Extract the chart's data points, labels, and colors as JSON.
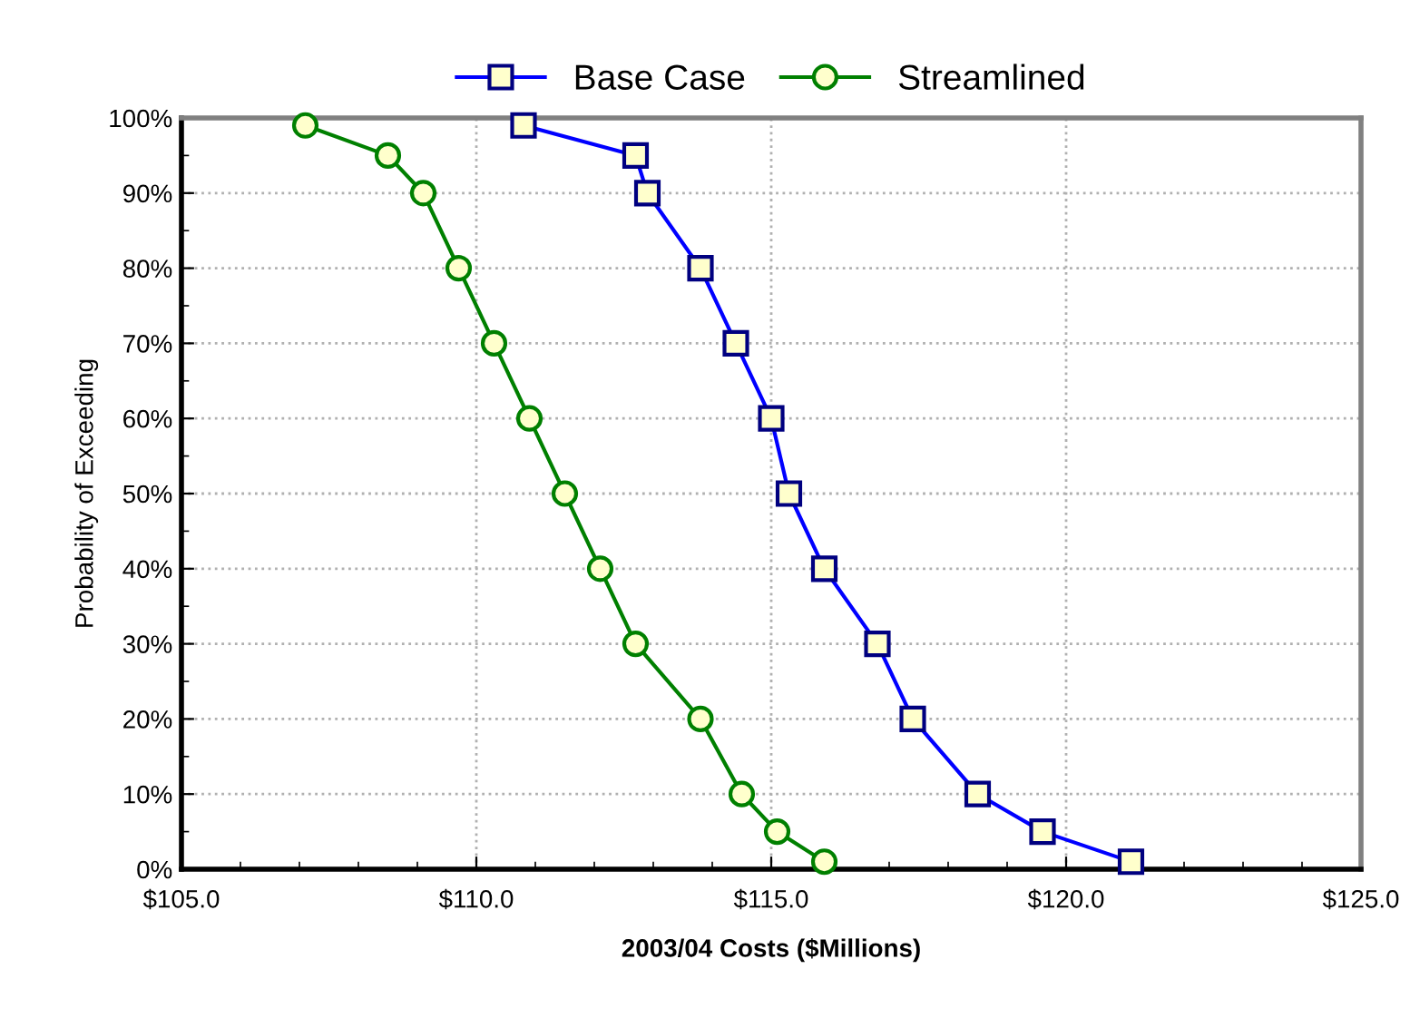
{
  "chart_data": {
    "type": "line",
    "xlabel": "2003/04 Costs ($Millions)",
    "ylabel": "Probability of Exceeding",
    "series": [
      {
        "name": "Base Case",
        "color": "#0000ff",
        "marker": "square",
        "x": [
          110.8,
          112.7,
          112.9,
          113.8,
          114.4,
          115.0,
          115.3,
          115.9,
          116.8,
          117.4,
          118.5,
          119.6,
          121.1
        ],
        "values": [
          99,
          95,
          90,
          80,
          70,
          60,
          50,
          40,
          30,
          20,
          10,
          5,
          1
        ]
      },
      {
        "name": "Streamlined",
        "color": "#008000",
        "marker": "circle",
        "x": [
          107.1,
          108.5,
          109.1,
          109.7,
          110.3,
          110.9,
          111.5,
          112.1,
          112.7,
          113.8,
          114.5,
          115.1,
          115.9
        ],
        "values": [
          99,
          95,
          90,
          80,
          70,
          60,
          50,
          40,
          30,
          20,
          10,
          5,
          1
        ]
      }
    ],
    "xlim": [
      105,
      125
    ],
    "xticks": [
      {
        "value": 105,
        "label": "$105.0"
      },
      {
        "value": 110,
        "label": "$110.0"
      },
      {
        "value": 115,
        "label": "$115.0"
      },
      {
        "value": 120,
        "label": "$120.0"
      },
      {
        "value": 125,
        "label": "$125.0"
      }
    ],
    "ylim": [
      0,
      100
    ],
    "yticks": [
      {
        "value": 0,
        "label": "0%"
      },
      {
        "value": 10,
        "label": "10%"
      },
      {
        "value": 20,
        "label": "20%"
      },
      {
        "value": 30,
        "label": "30%"
      },
      {
        "value": 40,
        "label": "40%"
      },
      {
        "value": 50,
        "label": "50%"
      },
      {
        "value": 60,
        "label": "60%"
      },
      {
        "value": 70,
        "label": "70%"
      },
      {
        "value": 80,
        "label": "80%"
      },
      {
        "value": 90,
        "label": "90%"
      },
      {
        "value": 100,
        "label": "100%"
      }
    ],
    "grid": true,
    "legend": "top",
    "line_style": "solid"
  }
}
